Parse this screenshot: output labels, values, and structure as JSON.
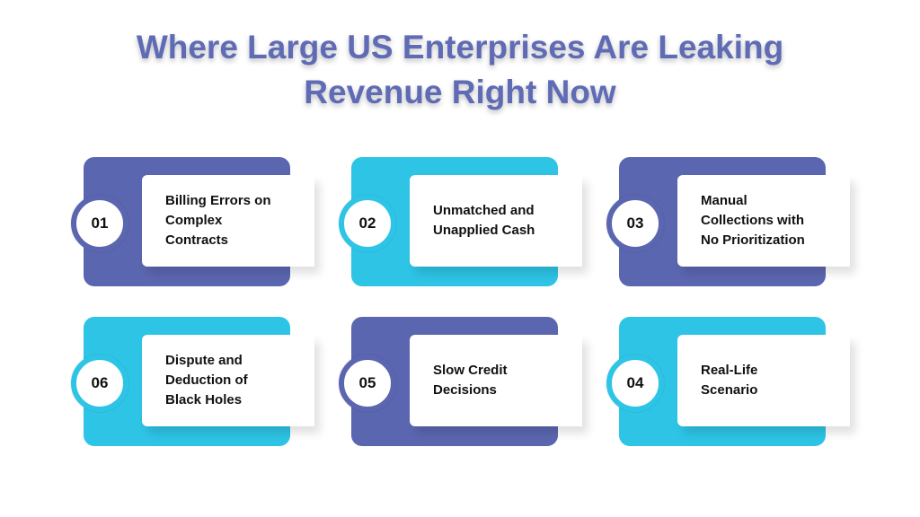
{
  "header": {
    "title_lines": [
      "Where Large US Enterprises Are Leaking",
      "Revenue Right Now"
    ]
  },
  "cards": [
    {
      "number": "01",
      "lines": [
        "Billing Errors on",
        "Complex",
        "Contracts"
      ]
    },
    {
      "number": "02",
      "lines": [
        "Unmatched and",
        "Unapplied Cash"
      ]
    },
    {
      "number": "03",
      "lines": [
        "Manual",
        "Collections with",
        "No Prioritization"
      ]
    },
    {
      "number": "06",
      "lines": [
        "Dispute and",
        "Deduction of",
        "Black Holes"
      ]
    },
    {
      "number": "05",
      "lines": [
        "Slow Credit",
        "Decisions"
      ]
    },
    {
      "number": "04",
      "lines": [
        "Real-Life",
        "Scenario"
      ]
    }
  ]
}
